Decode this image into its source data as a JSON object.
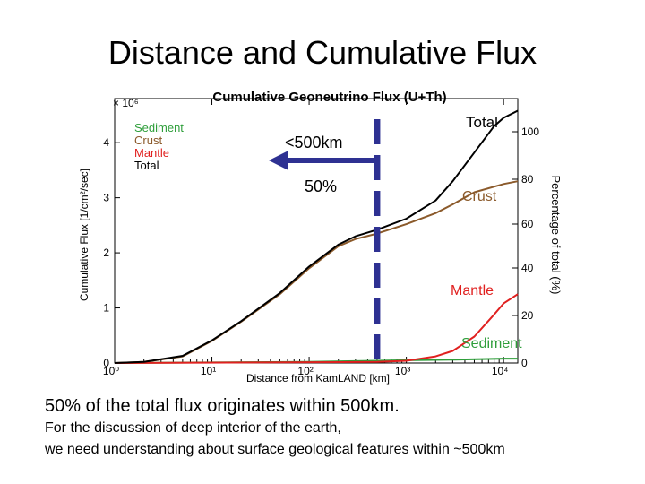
{
  "slide": {
    "title": "Distance and Cumulative Flux",
    "caption_1": "50% of the total flux originates within 500km.",
    "caption_2": "For the discussion of deep interior of the earth,",
    "caption_3": "we need understanding about surface geological features within ~500km"
  },
  "chart_data": {
    "type": "line",
    "title": "Cumulative Geoneutrino Flux (U+Th)",
    "xlabel": "Distance from KamLAND [km]",
    "ylabel": "Cumulative Flux [1/cm²/sec]",
    "y_multiplier": "× 10⁶",
    "right_axis_label": "Percentage of total (%)",
    "x_scale": "log",
    "xlim": [
      1,
      14000
    ],
    "ylim": [
      0,
      4.8
    ],
    "x_ticks": [
      "10⁰",
      "10¹",
      "10²",
      "10³",
      "10⁴"
    ],
    "y_ticks": [
      "0",
      "1",
      "2",
      "3",
      "4"
    ],
    "right_ticks": [
      "0",
      "20",
      "40",
      "60",
      "80",
      "100"
    ],
    "legend_position": "top-left",
    "grid": false,
    "series": [
      {
        "name": "Sediment",
        "color": "#2e9e3a",
        "x": [
          1,
          100,
          500,
          1000,
          3000,
          10000,
          14000
        ],
        "y": [
          0,
          0.02,
          0.04,
          0.05,
          0.06,
          0.08,
          0.08
        ]
      },
      {
        "name": "Crust",
        "color": "#8b5a2b",
        "x": [
          1,
          2,
          5,
          10,
          20,
          50,
          100,
          200,
          300,
          500,
          1000,
          2000,
          3000,
          5000,
          10000,
          14000
        ],
        "y": [
          0,
          0.02,
          0.12,
          0.4,
          0.75,
          1.25,
          1.72,
          2.12,
          2.25,
          2.35,
          2.52,
          2.72,
          2.88,
          3.1,
          3.25,
          3.3
        ]
      },
      {
        "name": "Mantle",
        "color": "#e0201f",
        "x": [
          1,
          500,
          1000,
          2000,
          3000,
          5000,
          8000,
          10000,
          14000
        ],
        "y": [
          0,
          0.02,
          0.04,
          0.12,
          0.22,
          0.48,
          0.88,
          1.08,
          1.25
        ]
      },
      {
        "name": "Total",
        "color": "#000000",
        "x": [
          1,
          2,
          5,
          10,
          20,
          50,
          100,
          200,
          300,
          500,
          1000,
          2000,
          3000,
          5000,
          8000,
          10000,
          14000
        ],
        "y": [
          0,
          0.02,
          0.13,
          0.41,
          0.76,
          1.27,
          1.75,
          2.15,
          2.3,
          2.42,
          2.62,
          2.95,
          3.3,
          3.82,
          4.3,
          4.45,
          4.58
        ]
      }
    ],
    "annotations": {
      "marker_distance_km": 500,
      "within_label": "<500km",
      "percent_label": "50%",
      "total_label": "Total",
      "crust_label": "Crust",
      "mantle_label": "Mantle",
      "sediment_label": "Sediment"
    }
  }
}
